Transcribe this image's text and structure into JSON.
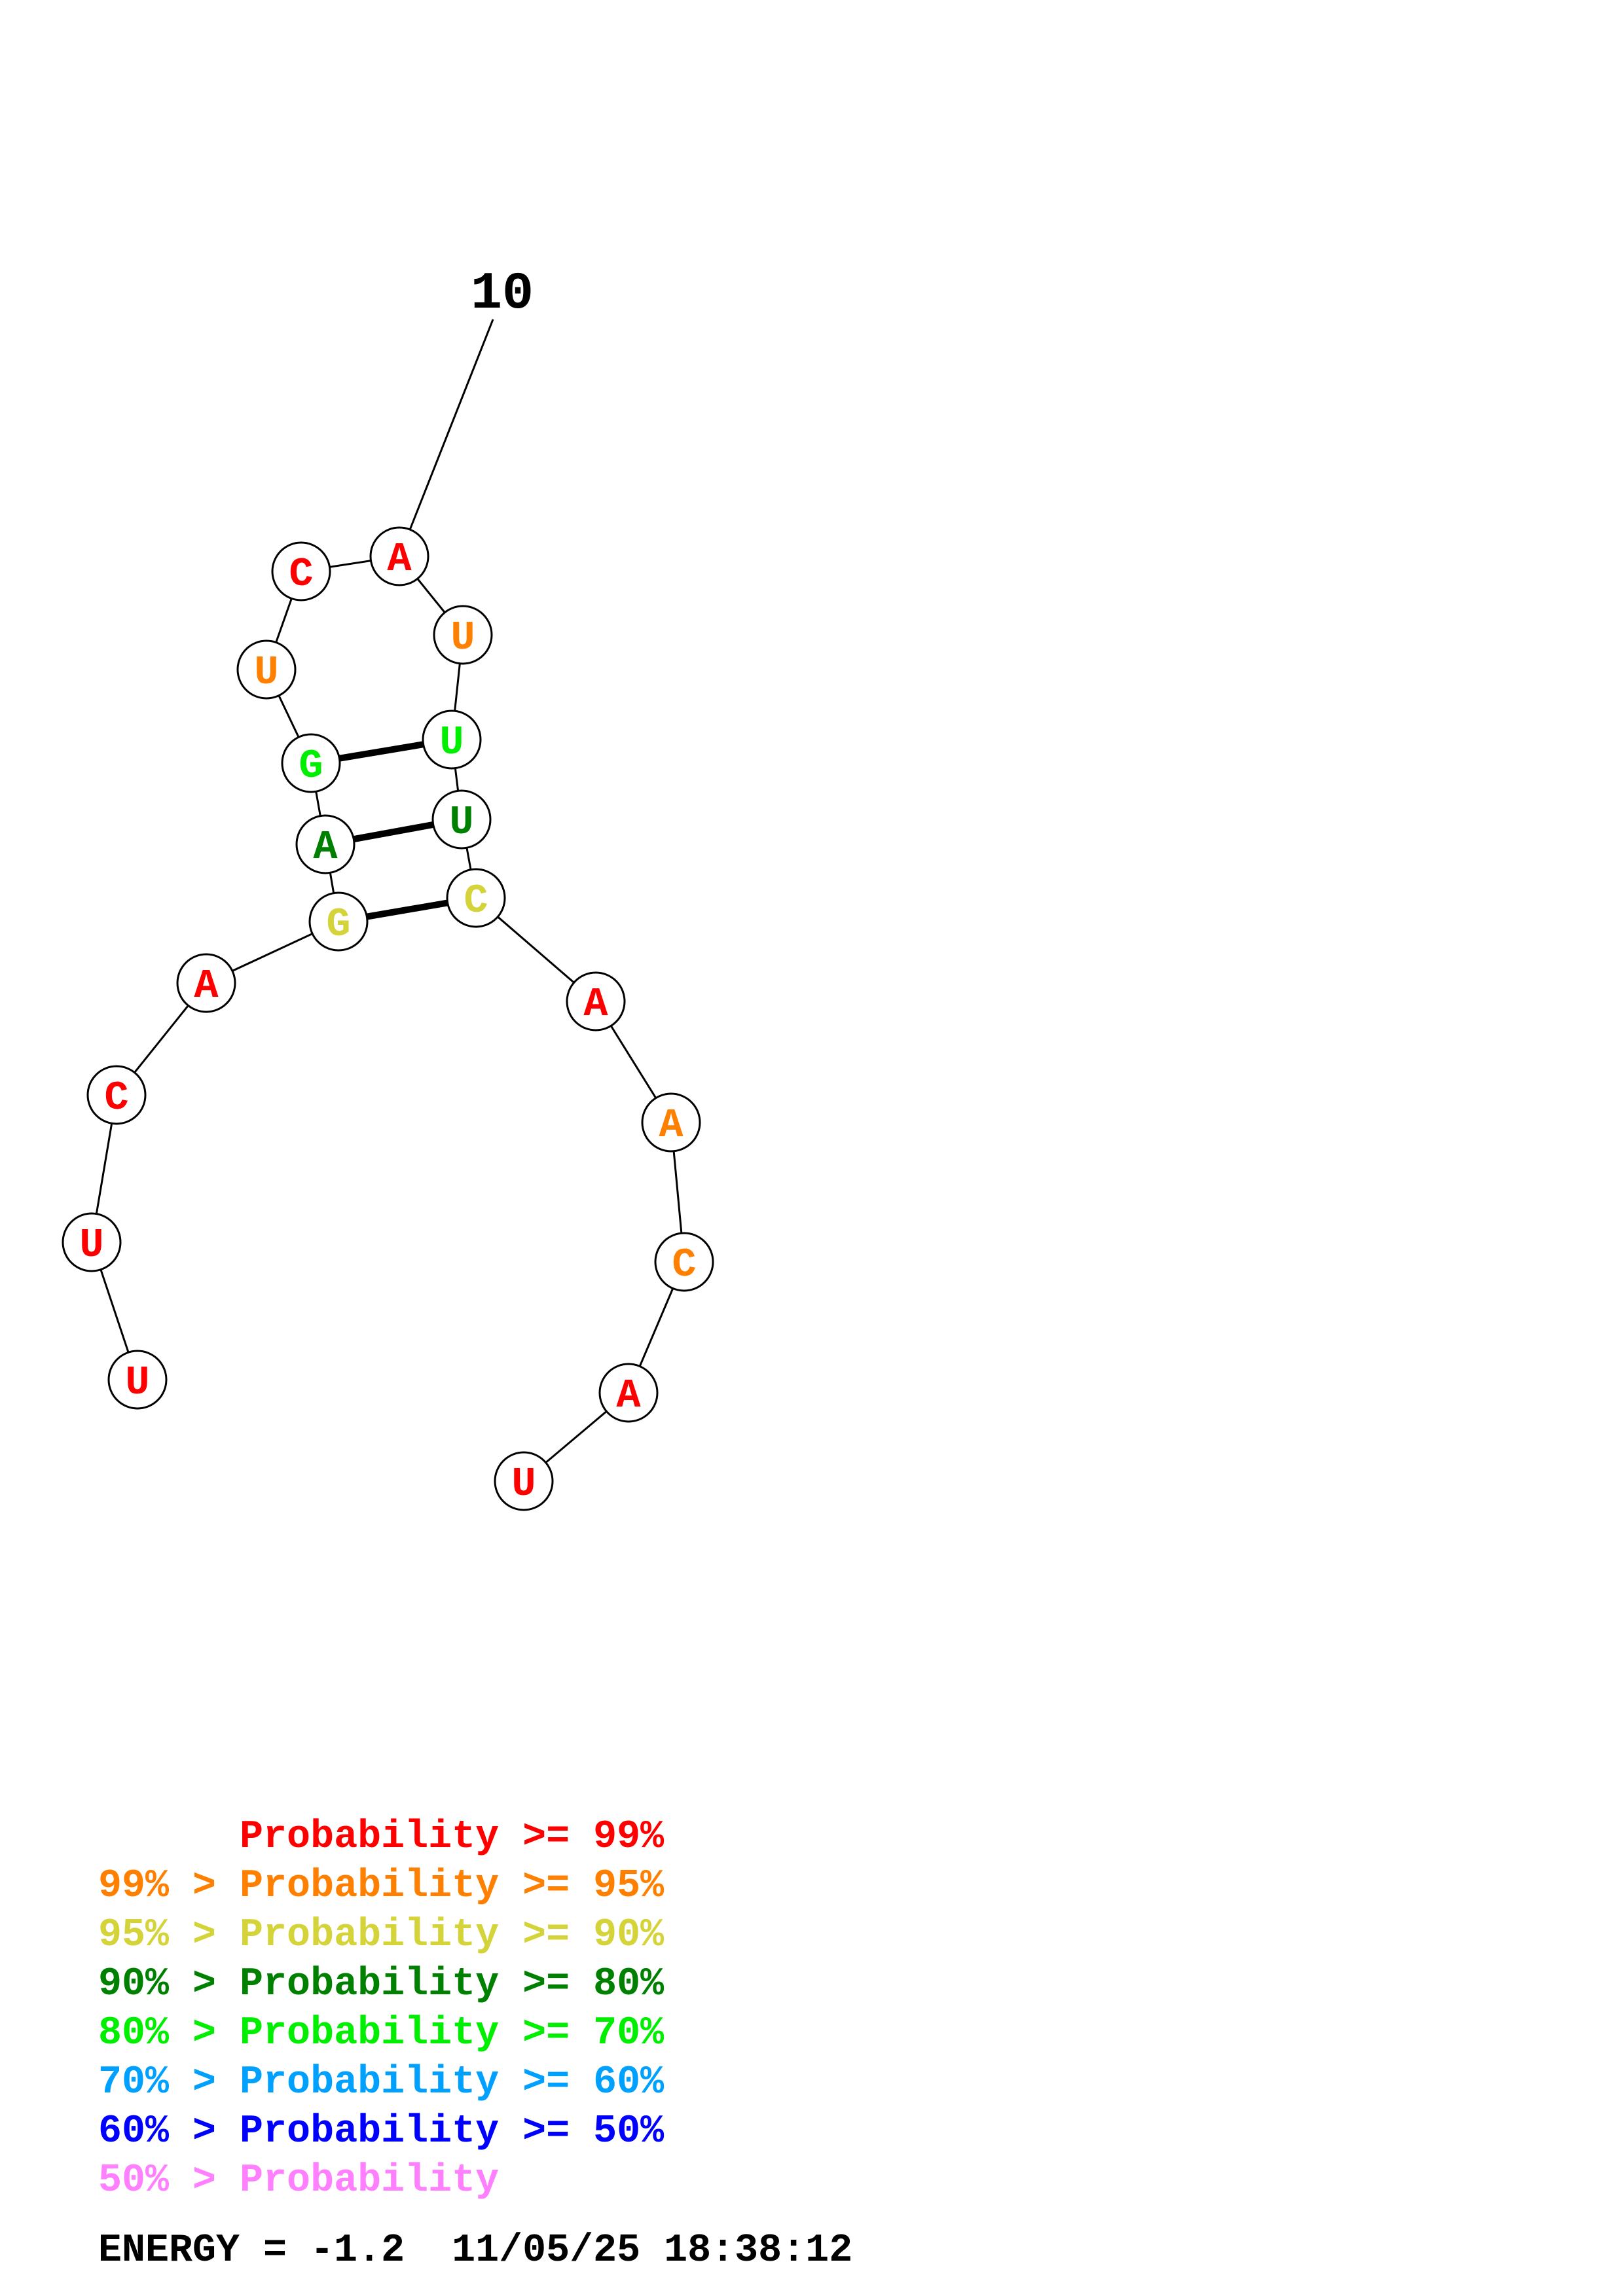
{
  "structure": {
    "index_label": "10",
    "bases": [
      {
        "letter": "U",
        "color": "#ff0000"
      },
      {
        "letter": "U",
        "color": "#ff0000"
      },
      {
        "letter": "C",
        "color": "#ff0000"
      },
      {
        "letter": "A",
        "color": "#ff0000"
      },
      {
        "letter": "G",
        "color": "#d4d43a"
      },
      {
        "letter": "A",
        "color": "#008000"
      },
      {
        "letter": "G",
        "color": "#00ee00"
      },
      {
        "letter": "U",
        "color": "#ff8000"
      },
      {
        "letter": "C",
        "color": "#ff0000"
      },
      {
        "letter": "A",
        "color": "#ff0000"
      },
      {
        "letter": "U",
        "color": "#ff8000"
      },
      {
        "letter": "U",
        "color": "#00ee00"
      },
      {
        "letter": "U",
        "color": "#008000"
      },
      {
        "letter": "C",
        "color": "#d4d43a"
      },
      {
        "letter": "A",
        "color": "#ff0000"
      },
      {
        "letter": "A",
        "color": "#ff8000"
      },
      {
        "letter": "C",
        "color": "#ff8000"
      },
      {
        "letter": "A",
        "color": "#ff0000"
      },
      {
        "letter": "U",
        "color": "#ff0000"
      }
    ],
    "pairs": [
      [
        5,
        14
      ],
      [
        6,
        13
      ],
      [
        7,
        12
      ]
    ]
  },
  "legend": [
    {
      "prefix": "    ",
      "text": "Probability >= 99%",
      "color": "#ff0000"
    },
    {
      "prefix": "99% > ",
      "text": "Probability >= 95%",
      "color": "#ff8000"
    },
    {
      "prefix": "95% > ",
      "text": "Probability >= 90%",
      "color": "#d4d43a"
    },
    {
      "prefix": "90% > ",
      "text": "Probability >= 80%",
      "color": "#008000"
    },
    {
      "prefix": "80% > ",
      "text": "Probability >= 70%",
      "color": "#00ee00"
    },
    {
      "prefix": "70% > ",
      "text": "Probability >= 60%",
      "color": "#00a0ff"
    },
    {
      "prefix": "60% > ",
      "text": "Probability >= 50%",
      "color": "#0000ff"
    },
    {
      "prefix": "50% > ",
      "text": "Probability",
      "color": "#ff80ff"
    }
  ],
  "energy": {
    "label": "ENERGY = -1.2",
    "timestamp": "11/05/25 18:38:12"
  }
}
